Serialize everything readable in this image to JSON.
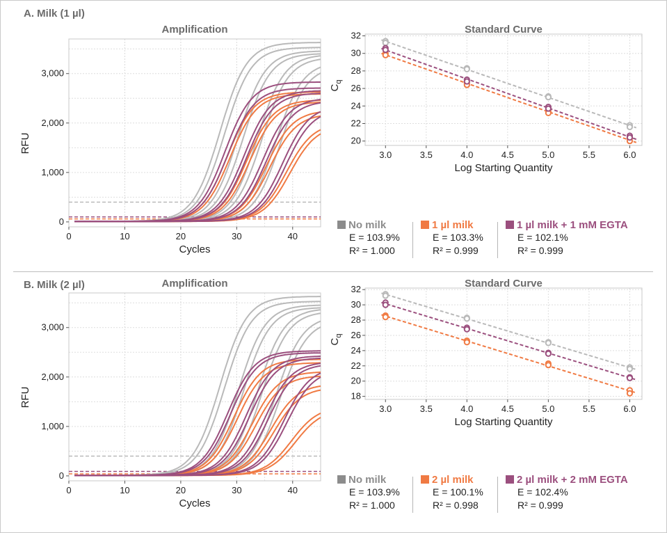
{
  "colors": {
    "gray": "#b9b9b9",
    "orange": "#f07a43",
    "purple": "#9b4f7e",
    "grid": "#d6d6d6"
  },
  "panels": [
    {
      "title": "A. Milk (1 µl)",
      "legend": [
        {
          "name": "No milk",
          "color": "#8c8c8c",
          "e": "E = 103.9%",
          "r2": "R² = 1.000"
        },
        {
          "name": "1 µl milk",
          "color": "#f07a43",
          "e": "E = 103.3%",
          "r2": "R² = 0.999"
        },
        {
          "name": "1 µl milk + 1 mM EGTA",
          "color": "#9b4f7e",
          "e": "E = 102.1%",
          "r2": "R² = 0.999"
        }
      ]
    },
    {
      "title": "B. Milk (2 µl)",
      "legend": [
        {
          "name": "No milk",
          "color": "#8c8c8c",
          "e": "E = 103.9%",
          "r2": "R² = 1.000"
        },
        {
          "name": "2 µl milk",
          "color": "#f07a43",
          "e": "E = 100.1%",
          "r2": "R² = 0.998"
        },
        {
          "name": "2 µl milk + 2 mM EGTA",
          "color": "#9b4f7e",
          "e": "E = 102.4%",
          "r2": "R² = 0.999"
        }
      ]
    }
  ],
  "chart_data": [
    {
      "type": "line",
      "title": "Amplification",
      "xlabel": "Cycles",
      "ylabel": "RFU",
      "xlim": [
        0,
        45
      ],
      "ylim": [
        -100,
        3700
      ],
      "xticks": [
        0,
        10,
        20,
        30,
        40
      ],
      "yticks": [
        0,
        1000,
        2000,
        3000
      ],
      "ytick_labels": [
        "0",
        "1,000",
        "2,000",
        "3,000"
      ],
      "thresholds": [
        {
          "series": "No milk",
          "value": 400,
          "color": "#b9b9b9"
        },
        {
          "series": "1 µl milk",
          "value": 60,
          "color": "#f07a43"
        },
        {
          "series": "1 µl milk + 1 mM EGTA",
          "value": 100,
          "color": "#9b4f7e"
        }
      ],
      "series": [
        {
          "name": "No milk",
          "color": "#b9b9b9",
          "curves": [
            {
              "cq": 21.5,
              "plateau": 3620
            },
            {
              "cq": 22.3,
              "plateau": 3520
            },
            {
              "cq": 24.8,
              "plateau": 3450
            },
            {
              "cq": 25.7,
              "plateau": 3400
            },
            {
              "cq": 28.2,
              "plateau": 3380
            },
            {
              "cq": 29.0,
              "plateau": 3320
            },
            {
              "cq": 31.5,
              "plateau": 3230
            },
            {
              "cq": 32.3,
              "plateau": 3150
            }
          ]
        },
        {
          "name": "1 µl milk",
          "color": "#f07a43",
          "curves": [
            {
              "cq": 22.8,
              "plateau": 2620
            },
            {
              "cq": 23.3,
              "plateau": 2580
            },
            {
              "cq": 26.3,
              "plateau": 2460
            },
            {
              "cq": 26.8,
              "plateau": 2420
            },
            {
              "cq": 29.8,
              "plateau": 2250
            },
            {
              "cq": 30.4,
              "plateau": 2180
            },
            {
              "cq": 33.4,
              "plateau": 2000
            },
            {
              "cq": 34.0,
              "plateau": 1950
            }
          ]
        },
        {
          "name": "1 µl milk + 1 mM EGTA",
          "color": "#9b4f7e",
          "curves": [
            {
              "cq": 22.4,
              "plateau": 2820
            },
            {
              "cq": 22.9,
              "plateau": 2700
            },
            {
              "cq": 25.8,
              "plateau": 2650
            },
            {
              "cq": 26.3,
              "plateau": 2600
            },
            {
              "cq": 29.2,
              "plateau": 2500
            },
            {
              "cq": 29.8,
              "plateau": 2440
            },
            {
              "cq": 32.7,
              "plateau": 2350
            },
            {
              "cq": 33.3,
              "plateau": 2280
            }
          ]
        }
      ]
    },
    {
      "type": "scatter",
      "title": "Standard Curve",
      "xlabel": "Log Starting Quantity",
      "ylabel": "Cq",
      "xlim": [
        2.75,
        6.15
      ],
      "ylim": [
        19.5,
        32.2
      ],
      "xticks": [
        3.0,
        3.5,
        4.0,
        4.5,
        5.0,
        5.5,
        6.0
      ],
      "xtick_labels": [
        "3.0",
        "3.5",
        "4.0",
        "4.5",
        "5.0",
        "5.5",
        "6.0"
      ],
      "yticks": [
        20,
        22,
        24,
        26,
        28,
        30,
        32
      ],
      "series": [
        {
          "name": "No milk",
          "color": "#b9b9b9",
          "x": [
            3,
            3,
            4,
            4,
            5,
            5,
            6,
            6
          ],
          "y": [
            31.4,
            31.2,
            28.3,
            28.2,
            25.1,
            25.0,
            21.8,
            21.6
          ]
        },
        {
          "name": "1 µl milk",
          "color": "#f07a43",
          "x": [
            3,
            3,
            4,
            4,
            5,
            5,
            6,
            6
          ],
          "y": [
            30.0,
            29.8,
            26.6,
            26.4,
            23.4,
            23.2,
            20.3,
            20.0
          ]
        },
        {
          "name": "1 µl milk + 1 mM EGTA",
          "color": "#9b4f7e",
          "x": [
            3,
            3,
            4,
            4,
            5,
            5,
            6,
            6
          ],
          "y": [
            30.6,
            30.4,
            27.0,
            26.8,
            23.9,
            23.7,
            20.6,
            20.4
          ]
        }
      ]
    },
    {
      "type": "line",
      "title": "Amplification",
      "xlabel": "Cycles",
      "ylabel": "RFU",
      "xlim": [
        0,
        45
      ],
      "ylim": [
        -100,
        3700
      ],
      "xticks": [
        0,
        10,
        20,
        30,
        40
      ],
      "yticks": [
        0,
        1000,
        2000,
        3000
      ],
      "ytick_labels": [
        "0",
        "1,000",
        "2,000",
        "3,000"
      ],
      "thresholds": [
        {
          "series": "No milk",
          "value": 400,
          "color": "#b9b9b9"
        },
        {
          "series": "2 µl milk",
          "value": 40,
          "color": "#f07a43"
        },
        {
          "series": "2 µl milk + 2 mM EGTA",
          "value": 90,
          "color": "#9b4f7e"
        }
      ],
      "series": [
        {
          "name": "No milk",
          "color": "#b9b9b9",
          "curves": [
            {
              "cq": 21.5,
              "plateau": 3620
            },
            {
              "cq": 22.3,
              "plateau": 3520
            },
            {
              "cq": 24.8,
              "plateau": 3450
            },
            {
              "cq": 25.7,
              "plateau": 3400
            },
            {
              "cq": 28.2,
              "plateau": 3380
            },
            {
              "cq": 29.0,
              "plateau": 3320
            },
            {
              "cq": 31.5,
              "plateau": 3230
            },
            {
              "cq": 32.3,
              "plateau": 3150
            }
          ]
        },
        {
          "name": "2 µl milk",
          "color": "#f07a43",
          "curves": [
            {
              "cq": 24.0,
              "plateau": 2350
            },
            {
              "cq": 24.6,
              "plateau": 2280
            },
            {
              "cq": 27.3,
              "plateau": 2100
            },
            {
              "cq": 27.9,
              "plateau": 2020
            },
            {
              "cq": 30.6,
              "plateau": 1850
            },
            {
              "cq": 31.2,
              "plateau": 1780
            },
            {
              "cq": 34.3,
              "plateau": 1400
            },
            {
              "cq": 35.0,
              "plateau": 1350
            }
          ]
        },
        {
          "name": "2 µl milk + 2 mM EGTA",
          "color": "#9b4f7e",
          "curves": [
            {
              "cq": 22.9,
              "plateau": 2520
            },
            {
              "cq": 23.4,
              "plateau": 2480
            },
            {
              "cq": 26.2,
              "plateau": 2420
            },
            {
              "cq": 26.8,
              "plateau": 2380
            },
            {
              "cq": 29.5,
              "plateau": 2300
            },
            {
              "cq": 30.1,
              "plateau": 2260
            },
            {
              "cq": 32.9,
              "plateau": 2200
            },
            {
              "cq": 33.5,
              "plateau": 2150
            }
          ]
        }
      ]
    },
    {
      "type": "scatter",
      "title": "Standard Curve",
      "xlabel": "Log Starting Quantity",
      "ylabel": "Cq",
      "xlim": [
        2.75,
        6.15
      ],
      "ylim": [
        17.6,
        32.2
      ],
      "xticks": [
        3.0,
        3.5,
        4.0,
        4.5,
        5.0,
        5.5,
        6.0
      ],
      "xtick_labels": [
        "3.0",
        "3.5",
        "4.0",
        "4.5",
        "5.0",
        "5.5",
        "6.0"
      ],
      "yticks": [
        18,
        20,
        22,
        24,
        26,
        28,
        30,
        32
      ],
      "series": [
        {
          "name": "No milk",
          "color": "#b9b9b9",
          "x": [
            3,
            3,
            4,
            4,
            5,
            5,
            6,
            6
          ],
          "y": [
            31.4,
            31.2,
            28.3,
            28.2,
            25.1,
            25.0,
            21.8,
            21.6
          ]
        },
        {
          "name": "2 µl milk",
          "color": "#f07a43",
          "x": [
            3,
            3,
            4,
            4,
            5,
            5,
            6,
            6
          ],
          "y": [
            28.6,
            28.4,
            25.3,
            25.1,
            22.3,
            22.1,
            18.8,
            18.4
          ]
        },
        {
          "name": "2 µl milk + 2 mM EGTA",
          "color": "#9b4f7e",
          "x": [
            3,
            3,
            4,
            4,
            5,
            5,
            6,
            6
          ],
          "y": [
            30.3,
            30.0,
            27.0,
            26.8,
            23.7,
            23.6,
            20.5,
            20.4
          ]
        }
      ]
    }
  ]
}
